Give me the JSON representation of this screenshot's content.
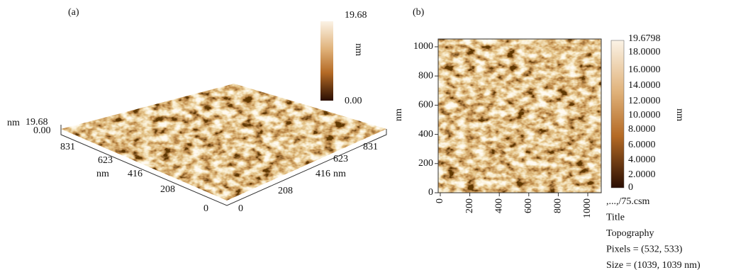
{
  "panel_a": {
    "label": "(a)",
    "colorbar": {
      "max": "19.68",
      "min": "0.00",
      "unit": "nm"
    },
    "z_axis": {
      "unit": "nm",
      "max": "19.68",
      "min": "0.00"
    },
    "left_axis": {
      "ticks": [
        "831",
        "623",
        "416",
        "208",
        "0"
      ],
      "unit": "nm"
    },
    "right_axis": {
      "ticks": [
        "831",
        "623",
        "416",
        "208",
        "0"
      ],
      "unit": "nm"
    }
  },
  "panel_b": {
    "label": "(b)",
    "y_axis": {
      "label": "nm",
      "ticks": [
        "1000",
        "800",
        "600",
        "400",
        "200",
        "0"
      ]
    },
    "x_axis": {
      "ticks": [
        "0",
        "200",
        "400",
        "600",
        "800",
        "1000"
      ]
    },
    "colorbar": {
      "ticks": [
        "19.6798",
        "18.0000",
        "16.0000",
        "14.0000",
        "12.0000",
        "10.0000",
        "8.0000",
        "6.0000",
        "4.0000",
        "2.0000",
        "0"
      ],
      "unit": "nm"
    },
    "info": [
      ",...,/75.csm",
      "Title",
      "Topography",
      "Pixels = (532, 533)",
      "Size = (1039, 1039 nm)"
    ]
  }
}
